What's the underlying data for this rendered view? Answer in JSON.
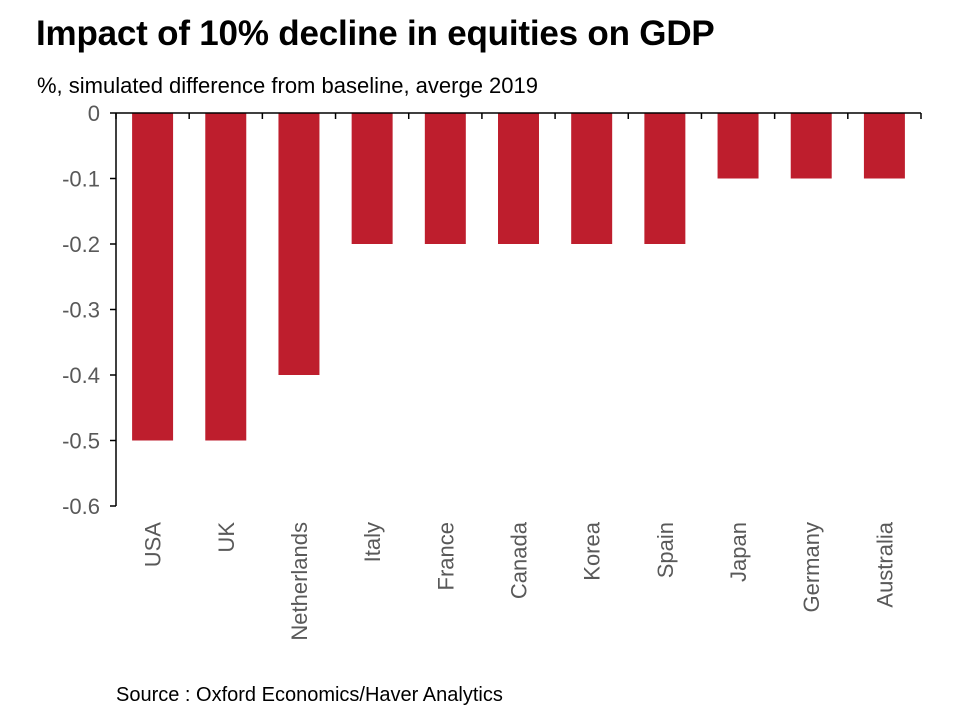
{
  "title": "Impact of 10% decline in equities on GDP",
  "subtitle": "%, simulated difference from baseline, averge 2019",
  "source": "Source : Oxford Economics/Haver Analytics",
  "colors": {
    "bar": "#BE1E2D",
    "axis": "#000000",
    "tick_text": "#595959"
  },
  "chart_data": {
    "type": "bar",
    "title": "Impact of 10% decline in equities on GDP",
    "subtitle": "%, simulated difference from baseline, averge 2019",
    "categories": [
      "USA",
      "UK",
      "Netherlands",
      "Italy",
      "France",
      "Canada",
      "Korea",
      "Spain",
      "Japan",
      "Germany",
      "Australia"
    ],
    "values": [
      -0.5,
      -0.5,
      -0.4,
      -0.2,
      -0.2,
      -0.2,
      -0.2,
      -0.2,
      -0.1,
      -0.1,
      -0.1
    ],
    "ylim": [
      -0.6,
      0
    ],
    "yticks": [
      "0",
      "-0.1",
      "-0.2",
      "-0.3",
      "-0.4",
      "-0.5",
      "-0.6"
    ],
    "ytick_values": [
      0,
      -0.1,
      -0.2,
      -0.3,
      -0.4,
      -0.5,
      -0.6
    ],
    "grid": false,
    "legend": "none"
  }
}
